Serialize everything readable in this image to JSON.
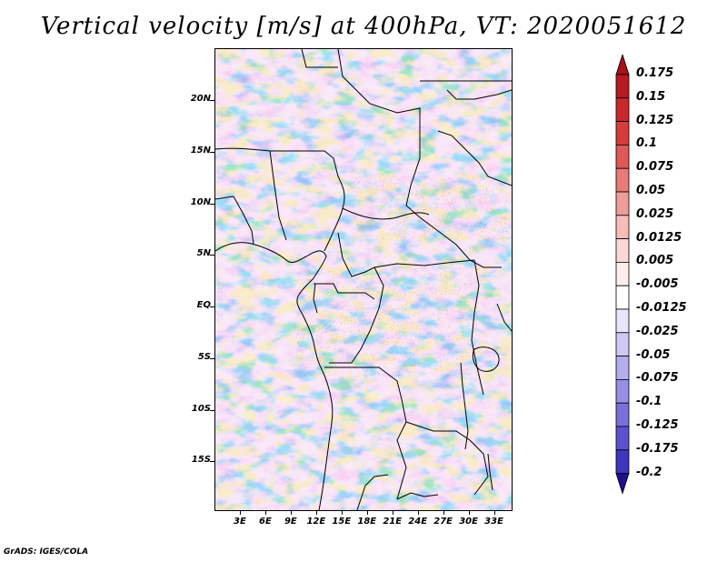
{
  "title": "Vertical velocity [m/s] at 400hPa, VT: 2020051612",
  "credit": "GrADS: IGES/COLA",
  "map": {
    "variable": "Vertical velocity",
    "units": "m/s",
    "level": "400hPa",
    "valid_time": "2020051612",
    "region": "Central Africa",
    "lat_range": [
      -20,
      25
    ],
    "lon_range": [
      0,
      35
    ],
    "lat_labels": [
      {
        "text": "20N",
        "lat": 20
      },
      {
        "text": "15N",
        "lat": 15
      },
      {
        "text": "10N",
        "lat": 10
      },
      {
        "text": "5N",
        "lat": 5
      },
      {
        "text": "EQ",
        "lat": 0
      },
      {
        "text": "5S",
        "lat": -5
      },
      {
        "text": "10S",
        "lat": -10
      },
      {
        "text": "15S",
        "lat": -15
      }
    ],
    "lon_labels": [
      {
        "text": "3E",
        "lon": 3
      },
      {
        "text": "6E",
        "lon": 6
      },
      {
        "text": "9E",
        "lon": 9
      },
      {
        "text": "12E",
        "lon": 12
      },
      {
        "text": "15E",
        "lon": 15
      },
      {
        "text": "18E",
        "lon": 18
      },
      {
        "text": "21E",
        "lon": 21
      },
      {
        "text": "24E",
        "lon": 24
      },
      {
        "text": "27E",
        "lon": 27
      },
      {
        "text": "30E",
        "lon": 30
      },
      {
        "text": "33E",
        "lon": 33
      }
    ]
  },
  "colorbar": {
    "arrow_top_color": "#a8101a",
    "arrow_bottom_color": "#1e0f8c",
    "entries": [
      {
        "label": "0.175",
        "color": "#b81a22"
      },
      {
        "label": "0.15",
        "color": "#c8282c"
      },
      {
        "label": "0.125",
        "color": "#d63c3c"
      },
      {
        "label": "0.1",
        "color": "#e05858"
      },
      {
        "label": "0.075",
        "color": "#e87a78"
      },
      {
        "label": "0.05",
        "color": "#f09c98"
      },
      {
        "label": "0.025",
        "color": "#f6bcb8"
      },
      {
        "label": "0.0125",
        "color": "#fad8d6"
      },
      {
        "label": "0.005",
        "color": "#fdeeed"
      },
      {
        "label": "-0.005",
        "color": "#ffffff"
      },
      {
        "label": "-0.0125",
        "color": "#e8e6fb"
      },
      {
        "label": "-0.025",
        "color": "#cfcaf5"
      },
      {
        "label": "-0.05",
        "color": "#b4adee"
      },
      {
        "label": "-0.075",
        "color": "#978fe6"
      },
      {
        "label": "-0.1",
        "color": "#7a70dc"
      },
      {
        "label": "-0.125",
        "color": "#5c52d0"
      },
      {
        "label": "-0.175",
        "color": "#3e35c0"
      },
      {
        "label": "-0.2",
        "color": "#2a1fa8"
      }
    ]
  },
  "field_colors": {
    "strong_up": "#c8282c",
    "up": "#f09c98",
    "neutral": "#ffffff",
    "down": "#978fe6",
    "strong_down": "#3e35c0",
    "background": "#b9b3ee"
  }
}
